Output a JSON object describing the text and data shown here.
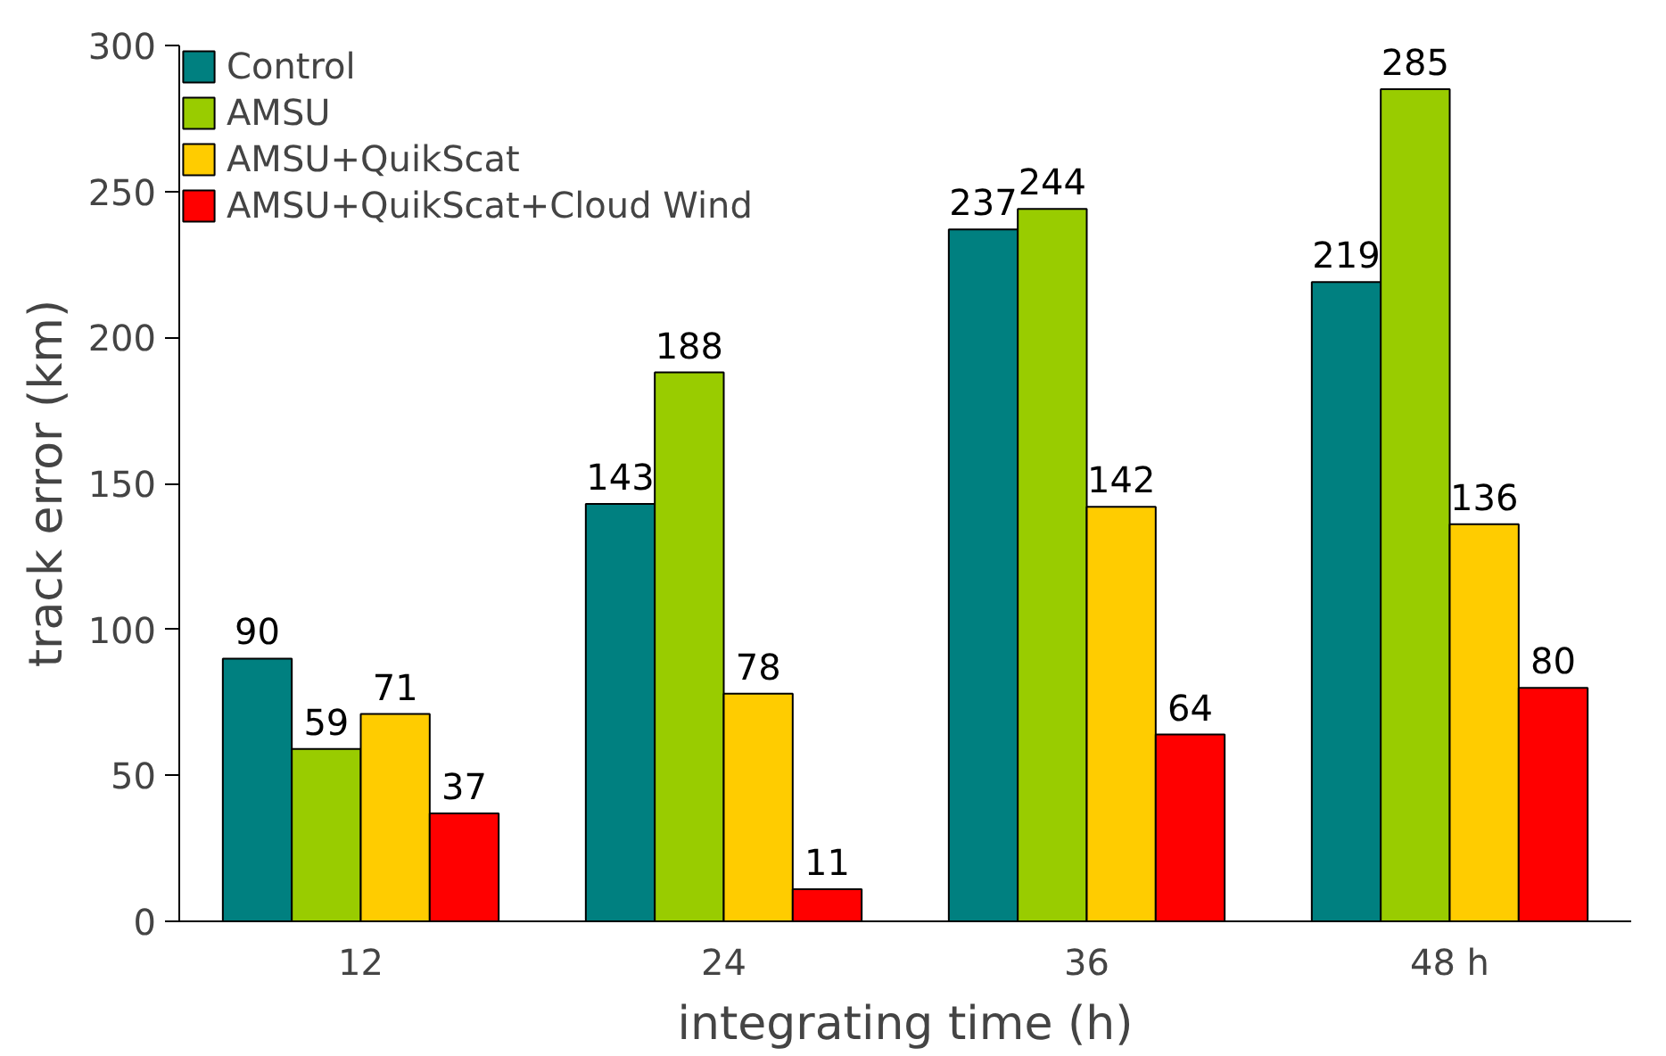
{
  "chart_data": {
    "type": "bar",
    "xlabel": "integrating time (h)",
    "ylabel": "track error (km)",
    "categories": [
      "12",
      "24",
      "36",
      "48 h"
    ],
    "series": [
      {
        "name": "Control",
        "color": "#008080",
        "values": [
          90,
          143,
          237,
          219
        ]
      },
      {
        "name": "AMSU",
        "color": "#99cc00",
        "values": [
          59,
          188,
          244,
          285
        ]
      },
      {
        "name": "AMSU+QuikScat",
        "color": "#ffcc00",
        "values": [
          71,
          78,
          142,
          136
        ]
      },
      {
        "name": "AMSU+QuikScat+Cloud Wind",
        "color": "#ff0000",
        "values": [
          37,
          11,
          64,
          80
        ]
      }
    ],
    "ylim": [
      0,
      300
    ],
    "yticks": [
      0,
      50,
      100,
      150,
      200,
      250,
      300
    ],
    "data_labels": true,
    "legend": "top left",
    "grid": false
  }
}
